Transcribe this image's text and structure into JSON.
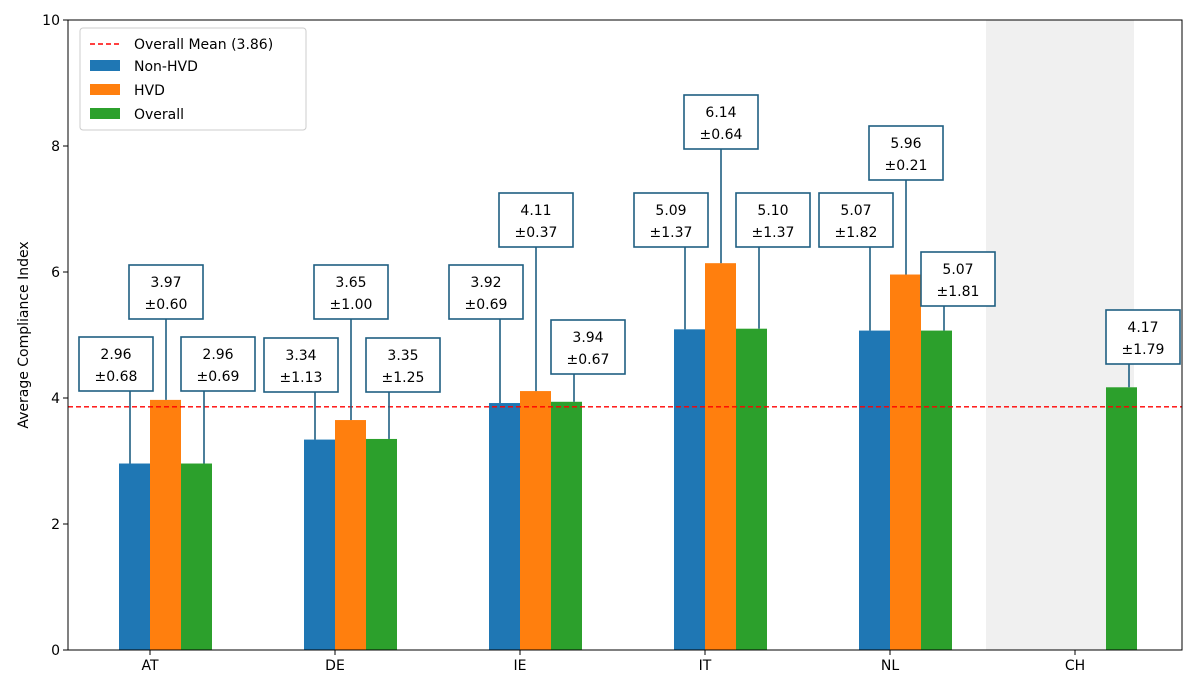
{
  "chart_data": {
    "type": "bar",
    "title": "",
    "xlabel": "",
    "ylabel": "Average Compliance Index",
    "ylim": [
      0,
      10
    ],
    "yticks": [
      "0",
      "2",
      "4",
      "6",
      "8",
      "10"
    ],
    "categories": [
      "AT",
      "DE",
      "IE",
      "IT",
      "NL",
      "CH"
    ],
    "highlighted_category": "CH",
    "highlight_color": "#f0f0f0",
    "grid": false,
    "legend_position": "top-left",
    "mean_line": {
      "label": "Overall Mean (3.86)",
      "value": 3.86,
      "color": "#ff0000",
      "style": "dashed"
    },
    "series": [
      {
        "name": "Non-HVD",
        "color": "#1f77b4",
        "values": [
          2.96,
          3.34,
          3.92,
          5.09,
          5.07,
          null
        ],
        "std": [
          0.68,
          1.13,
          0.69,
          1.37,
          1.82,
          null
        ],
        "labels": [
          [
            "2.96",
            "±0.68"
          ],
          [
            "3.34",
            "±1.13"
          ],
          [
            "3.92",
            "±0.69"
          ],
          [
            "5.09",
            "±1.37"
          ],
          [
            "5.07",
            "±1.82"
          ],
          null
        ]
      },
      {
        "name": "HVD",
        "color": "#ff7f0e",
        "values": [
          3.97,
          3.65,
          4.11,
          6.14,
          5.96,
          null
        ],
        "std": [
          0.6,
          1.0,
          0.37,
          0.64,
          0.21,
          null
        ],
        "labels": [
          [
            "3.97",
            "±0.60"
          ],
          [
            "3.65",
            "±1.00"
          ],
          [
            "4.11",
            "±0.37"
          ],
          [
            "6.14",
            "±0.64"
          ],
          [
            "5.96",
            "±0.21"
          ],
          null
        ]
      },
      {
        "name": "Overall",
        "color": "#2ca02c",
        "values": [
          2.96,
          3.35,
          3.94,
          5.1,
          5.07,
          4.17
        ],
        "std": [
          0.69,
          1.25,
          0.67,
          1.37,
          1.81,
          1.79
        ],
        "labels": [
          [
            "2.96",
            "±0.69"
          ],
          [
            "3.35",
            "±1.25"
          ],
          [
            "3.94",
            "±0.67"
          ],
          [
            "5.10",
            "±1.37"
          ],
          [
            "5.07",
            "±1.81"
          ],
          [
            "4.17",
            "±1.79"
          ]
        ]
      }
    ],
    "annotation_border_color": "#1f5f82"
  }
}
